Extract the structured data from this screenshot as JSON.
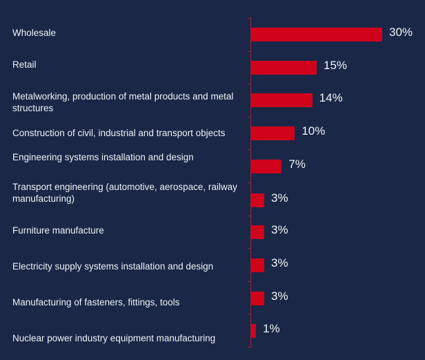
{
  "chart_data": {
    "type": "bar",
    "orientation": "horizontal",
    "categories": [
      "Wholesale",
      "Retail",
      "Metalworking, production of metal products and metal structures",
      "Construction of civil, industrial and transport objects",
      "Engineering systems installation and design",
      "Transport engineering (automotive, aerospace, railway manufacturing)",
      "Furniture manufacture",
      "Electricity supply systems installation and design",
      "Manufacturing of fasteners, fittings, tools",
      "Nuclear power industry equipment manufacturing"
    ],
    "values": [
      30,
      15,
      14,
      10,
      7,
      3,
      3,
      3,
      3,
      1
    ],
    "data_labels": [
      "30%",
      "15%",
      "14%",
      "10%",
      "7%",
      "3%",
      "3%",
      "3%",
      "3%",
      "1%"
    ],
    "unit": "%",
    "title": "",
    "xlabel": "",
    "ylabel": "",
    "xlim": [
      0,
      30
    ],
    "grid": false,
    "colors": {
      "bar": "#d0021b",
      "background": "#1a2747",
      "text": "#eef1f6"
    }
  }
}
